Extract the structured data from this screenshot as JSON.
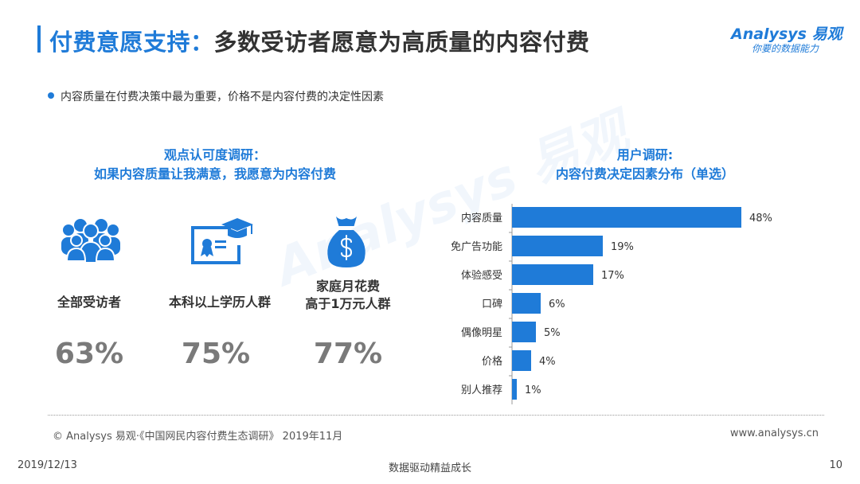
{
  "header": {
    "title_highlight": "付费意愿支持：",
    "title_main": "多数受访者愿意为高质量的内容付费",
    "logo_main": "Analysys 易观",
    "logo_sub": "你要的数据能力"
  },
  "watermark": "Analysys 易观",
  "bullet": "内容质量在付费决策中最为重要，价格不是内容付费的决定性因素",
  "left_section": {
    "title_line1": "观点认可度调研：",
    "title_line2": "如果内容质量让我满意，我愿意为内容付费",
    "groups": [
      {
        "icon": "people-group-icon",
        "label_line1": "全部受访者",
        "label_line2": "",
        "value": "63%"
      },
      {
        "icon": "graduation-certificate-icon",
        "label_line1": "本科以上学历人群",
        "label_line2": "",
        "value": "75%"
      },
      {
        "icon": "money-bag-icon",
        "label_line1": "家庭月花费",
        "label_line2": "高于1万元人群",
        "value": "77%"
      }
    ]
  },
  "right_section": {
    "title_line1": "用户调研:",
    "title_line2": "内容付费决定因素分布（单选）"
  },
  "chart_data": {
    "type": "bar",
    "orientation": "horizontal",
    "title": "用户调研:内容付费决定因素分布（单选）",
    "categories": [
      "内容质量",
      "免广告功能",
      "体验感受",
      "口碑",
      "偶像明星",
      "价格",
      "别人推荐"
    ],
    "values": [
      48,
      19,
      17,
      6,
      5,
      4,
      1
    ],
    "value_labels": [
      "48%",
      "19%",
      "17%",
      "6%",
      "5%",
      "4%",
      "1%"
    ],
    "unit": "%",
    "bar_color": "#1f7bd8",
    "xlim": [
      0,
      50
    ],
    "grid": false
  },
  "footer": {
    "source": "© Analysys 易观·《中国网民内容付费生态调研》 2019年11月",
    "site": "www.analysys.cn",
    "date": "2019/12/13",
    "slogan": "数据驱动精益成长",
    "page": "10"
  },
  "colors": {
    "accent": "#1f7bd8",
    "percent_text": "#7a7a7a"
  }
}
